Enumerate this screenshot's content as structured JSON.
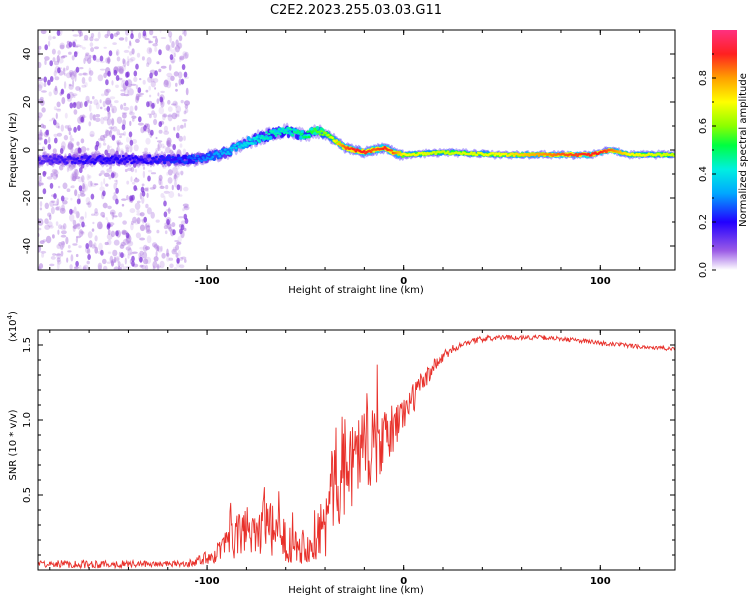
{
  "figure_title": "C2E2.2023.255.03.03.G11",
  "colors": {
    "snr_line": "#e8302a",
    "noise_scatter": "#b07ee0",
    "frame": "#000000"
  },
  "chart_data": [
    {
      "type": "heatmap",
      "name": "spectrogram",
      "xlabel": "Height of straight line (km)",
      "ylabel": "Frequency (Hz)",
      "xlim": [
        -186,
        138
      ],
      "ylim": [
        -50,
        50
      ],
      "x_ticks": [
        -100,
        0,
        100
      ],
      "x_tick_labels": [
        "-100",
        "0",
        "100"
      ],
      "y_ticks": [
        -40,
        -20,
        0,
        20,
        40
      ],
      "y_tick_labels": [
        "-40",
        "-20",
        "0",
        "20",
        "40"
      ],
      "ridge": {
        "x": [
          -186,
          -160,
          -130,
          -110,
          -100,
          -90,
          -80,
          -70,
          -60,
          -50,
          -45,
          -40,
          -35,
          -30,
          -25,
          -20,
          -15,
          -10,
          -5,
          0,
          20,
          50,
          80,
          95,
          100,
          105,
          115,
          138
        ],
        "freq_hz": [
          -4,
          -4,
          -4,
          -4,
          -3,
          -1,
          3,
          6,
          8,
          6,
          8,
          7,
          4,
          1,
          0,
          -1,
          0,
          1,
          -1,
          -2,
          -1,
          -2,
          -2,
          -2,
          -1,
          0,
          -2,
          -2
        ],
        "amplitude": [
          0.15,
          0.2,
          0.2,
          0.25,
          0.3,
          0.35,
          0.4,
          0.45,
          0.45,
          0.5,
          0.55,
          0.6,
          0.7,
          0.85,
          0.9,
          0.9,
          0.85,
          0.9,
          0.85,
          0.7,
          0.65,
          0.7,
          0.85,
          0.9,
          0.9,
          0.85,
          0.7,
          0.65
        ]
      }
    },
    {
      "type": "colorbar",
      "name": "amplitude-colorbar",
      "label": "Normalized spectral amplitude",
      "range": [
        0.0,
        1.0
      ],
      "ticks": [
        0.0,
        0.2,
        0.4,
        0.6,
        0.8
      ],
      "tick_labels": [
        "0.0",
        "0.2",
        "0.4",
        "0.6",
        "0.8"
      ]
    },
    {
      "type": "line",
      "name": "snr",
      "xlabel": "Height of straight line (km)",
      "ylabel": "SNR (10 * v/v)",
      "scale_note": "(x10",
      "scale_exp": "4",
      "scale_close": ")",
      "xlim": [
        -186,
        138
      ],
      "ylim": [
        0,
        1.6
      ],
      "x_ticks": [
        -100,
        0,
        100
      ],
      "x_tick_labels": [
        "-100",
        "0",
        "100"
      ],
      "y_ticks": [
        0.5,
        1.0,
        1.5
      ],
      "y_tick_labels": [
        "0.5",
        "1.0",
        "1.5"
      ],
      "series": [
        {
          "name": "SNR",
          "x": [
            -186,
            -160,
            -130,
            -110,
            -100,
            -90,
            -80,
            -70,
            -60,
            -50,
            -40,
            -35,
            -30,
            -25,
            -20,
            -15,
            -10,
            -5,
            0,
            5,
            10,
            15,
            20,
            25,
            30,
            40,
            50,
            60,
            70,
            80,
            90,
            100,
            110,
            120,
            130,
            138
          ],
          "values": [
            0.04,
            0.04,
            0.04,
            0.04,
            0.08,
            0.16,
            0.28,
            0.28,
            0.2,
            0.16,
            0.3,
            0.6,
            0.7,
            0.75,
            0.85,
            0.8,
            0.85,
            0.95,
            1.05,
            1.15,
            1.25,
            1.35,
            1.42,
            1.47,
            1.51,
            1.54,
            1.55,
            1.55,
            1.55,
            1.54,
            1.53,
            1.51,
            1.5,
            1.49,
            1.48,
            1.47
          ],
          "noise": [
            0.02,
            0.03,
            0.02,
            0.02,
            0.05,
            0.1,
            0.18,
            0.2,
            0.15,
            0.12,
            0.25,
            0.35,
            0.35,
            0.3,
            0.3,
            0.25,
            0.2,
            0.18,
            0.12,
            0.1,
            0.08,
            0.05,
            0.04,
            0.03,
            0.02,
            0.02,
            0.015,
            0.015,
            0.015,
            0.015,
            0.015,
            0.02,
            0.015,
            0.015,
            0.015,
            0.015
          ]
        }
      ]
    }
  ]
}
